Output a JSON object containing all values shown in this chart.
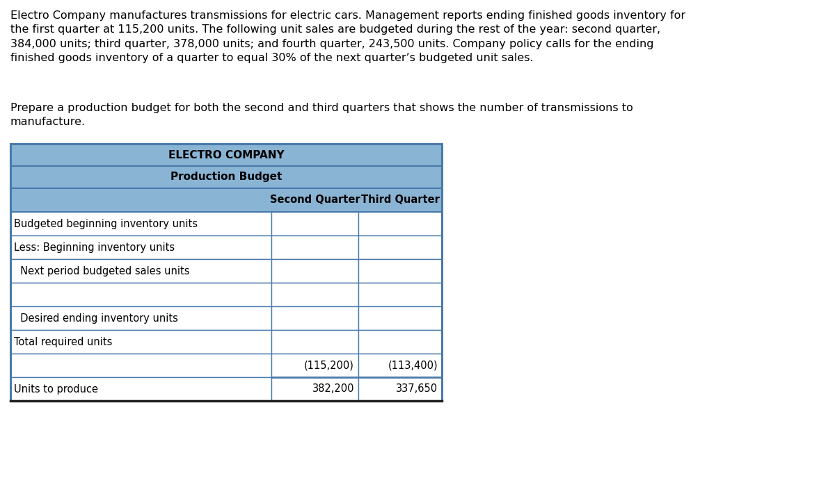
{
  "paragraph1": "Electro Company manufactures transmissions for electric cars. Management reports ending finished goods inventory for\nthe first quarter at 115,200 units. The following unit sales are budgeted during the rest of the year: second quarter,\n384,000 units; third quarter, 378,000 units; and fourth quarter, 243,500 units. Company policy calls for the ending\nfinished goods inventory of a quarter to equal 30% of the next quarter’s budgeted unit sales.",
  "paragraph2": "Prepare a production budget for both the second and third quarters that shows the number of transmissions to\nmanufacture.",
  "table_title1": "ELECTRO COMPANY",
  "table_title2": "Production Budget",
  "col_headers": [
    "Second Quarter",
    "Third Quarter"
  ],
  "row_labels": [
    "Budgeted beginning inventory units",
    "Less: Beginning inventory units",
    "  Next period budgeted sales units",
    "",
    "  Desired ending inventory units",
    "Total required units",
    "",
    "Units to produce"
  ],
  "col2_values": [
    "",
    "",
    "",
    "",
    "",
    "",
    "(115,200)",
    "382,200"
  ],
  "col3_values": [
    "",
    "",
    "",
    "",
    "",
    "",
    "(113,400)",
    "337,650"
  ],
  "header_bg": "#8ab4d4",
  "row_bg": "#ffffff",
  "border_color": "#4a7aaa",
  "text_color": "#000000",
  "fig_bg": "#ffffff",
  "para1_fontsize": 11.5,
  "para2_fontsize": 11.5,
  "title_fontsize": 11.0,
  "header_fontsize": 10.5,
  "data_fontsize": 10.5
}
